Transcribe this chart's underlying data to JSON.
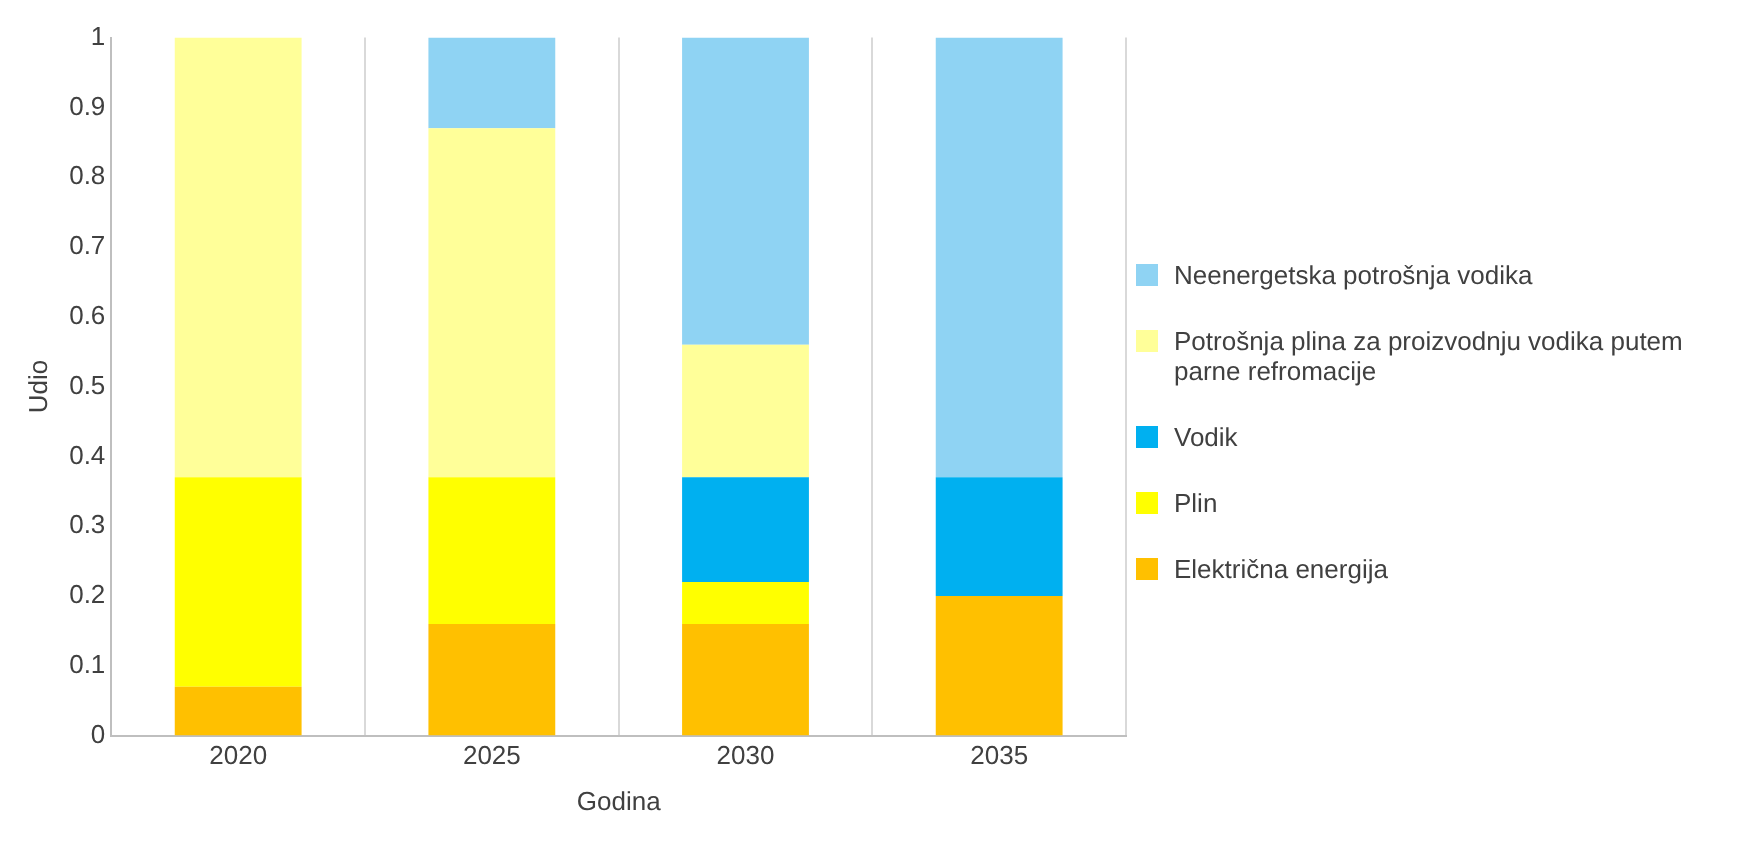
{
  "chart_data": {
    "type": "bar",
    "stacked": true,
    "xlabel": "Godina",
    "ylabel": "Udio",
    "categories": [
      "2020",
      "2025",
      "2030",
      "2035"
    ],
    "series": [
      {
        "name": "Električna energija",
        "color": "#ffc000",
        "values": [
          0.07,
          0.16,
          0.16,
          0.2
        ]
      },
      {
        "name": "Plin",
        "color": "#ffff00",
        "values": [
          0.3,
          0.21,
          0.06,
          0
        ]
      },
      {
        "name": "Vodik",
        "color": "#00b0f0",
        "values": [
          0,
          0,
          0.15,
          0.17
        ]
      },
      {
        "name": "Potrošnja plina za proizvodnju vodika putem parne refromacije",
        "color": "#ffff99",
        "values": [
          0.63,
          0.5,
          0.19,
          0
        ]
      },
      {
        "name": "Neenergetska potrošnja vodika",
        "color": "#8fd3f3",
        "values": [
          0,
          0.13,
          0.44,
          0.63
        ]
      }
    ],
    "ylim": [
      0,
      1
    ],
    "yticks": [
      0,
      0.1,
      0.2,
      0.3,
      0.4,
      0.5,
      0.6,
      0.7,
      0.8,
      0.9,
      1
    ],
    "grid": "x",
    "legend": "right"
  }
}
